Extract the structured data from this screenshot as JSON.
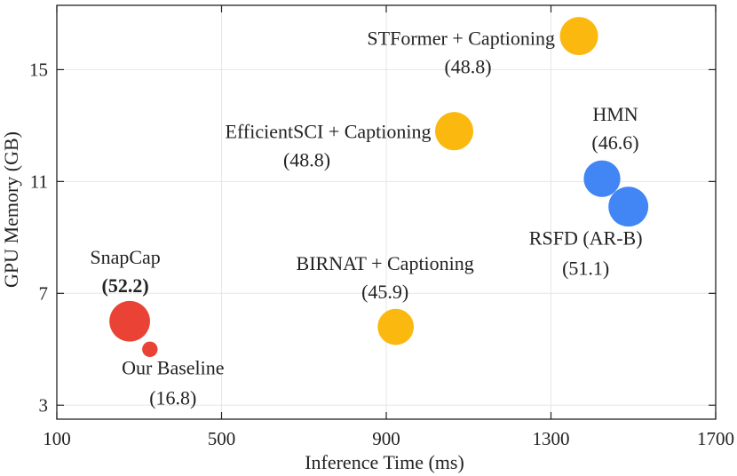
{
  "chart_data": {
    "type": "scatter",
    "title": "",
    "xlabel": "Inference Time (ms)",
    "ylabel": "GPU Memory (GB)",
    "xlim": [
      100,
      1700
    ],
    "ylim": [
      2.5,
      17.3
    ],
    "xticks": [
      100,
      500,
      900,
      1300,
      1700
    ],
    "yticks": [
      3,
      7,
      11,
      15
    ],
    "xtick_labels": [
      "100",
      "500",
      "900",
      "1300",
      "1700"
    ],
    "ytick_labels": [
      "3",
      "7",
      "11",
      "15"
    ],
    "grid": true,
    "points": [
      {
        "id": "stformer",
        "x": 1368,
        "y": 16.2,
        "score": 48.8,
        "color": "#FBB80F",
        "name": "STFormer + Captioning",
        "score_label": "(48.8)",
        "bold_score": false
      },
      {
        "id": "efficientsci",
        "x": 1065,
        "y": 12.8,
        "score": 48.8,
        "color": "#FBB80F",
        "name": "EfficientSCI + Captioning",
        "score_label": "(48.8)",
        "bold_score": false
      },
      {
        "id": "birnat",
        "x": 923,
        "y": 5.8,
        "score": 45.9,
        "color": "#FBB80F",
        "name": "BIRNAT + Captioning",
        "score_label": "(45.9)",
        "bold_score": false
      },
      {
        "id": "hmn",
        "x": 1424,
        "y": 11.1,
        "score": 46.6,
        "color": "#4285F4",
        "name": "HMN",
        "score_label": "(46.6)",
        "bold_score": false
      },
      {
        "id": "rsfd",
        "x": 1488,
        "y": 10.1,
        "score": 51.1,
        "color": "#4285F4",
        "name": "RSFD (AR-B)",
        "score_label": "(51.1)",
        "bold_score": false
      },
      {
        "id": "snapcap",
        "x": 277,
        "y": 6.0,
        "score": 52.2,
        "color": "#EA4335",
        "name": "SnapCap",
        "score_label": "(52.2)",
        "bold_score": true
      },
      {
        "id": "baseline",
        "x": 326,
        "y": 5.0,
        "score": 16.8,
        "color": "#EA4335",
        "name": "Our Baseline",
        "score_label": "(16.8)",
        "bold_score": false
      }
    ]
  }
}
